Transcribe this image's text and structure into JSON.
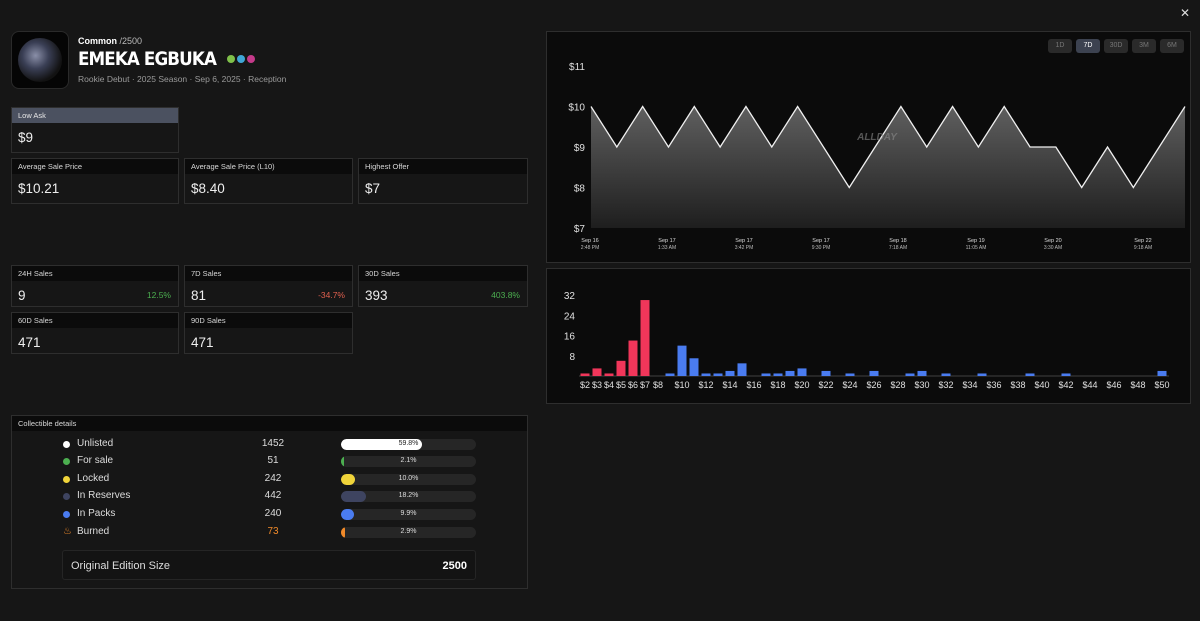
{
  "header": {
    "tier": "Common",
    "edition_suffix": "/2500",
    "player_name": "EMEKA EGBUKA",
    "meta": "Rookie Debut · 2025 Season · Sep 6, 2025 · Reception"
  },
  "stats": {
    "low_ask": {
      "label": "Low Ask",
      "value": "$9"
    },
    "avg_sale": {
      "label": "Average Sale Price",
      "value": "$10.21"
    },
    "avg_sale_l10": {
      "label": "Average Sale Price (L10)",
      "value": "$8.40"
    },
    "highest_offer": {
      "label": "Highest Offer",
      "value": "$7"
    },
    "sales_24h": {
      "label": "24H Sales",
      "value": "9",
      "change": "12.5%"
    },
    "sales_7d": {
      "label": "7D Sales",
      "value": "81",
      "change": "-34.7%"
    },
    "sales_30d": {
      "label": "30D Sales",
      "value": "393",
      "change": "403.8%"
    },
    "sales_60d": {
      "label": "60D Sales",
      "value": "471"
    },
    "sales_90d": {
      "label": "90D Sales",
      "value": "471"
    }
  },
  "details": {
    "title": "Collectible details",
    "rows": [
      {
        "label": "Unlisted",
        "count": "1452",
        "pct": "59.8%",
        "fraction": 0.598,
        "color": "#ffffff"
      },
      {
        "label": "For sale",
        "count": "51",
        "pct": "2.1%",
        "fraction": 0.021,
        "color": "#4caf50"
      },
      {
        "label": "Locked",
        "count": "242",
        "pct": "10.0%",
        "fraction": 0.1,
        "color": "#f0d43a"
      },
      {
        "label": "In Reserves",
        "count": "442",
        "pct": "18.2%",
        "fraction": 0.182,
        "color": "#3e4460"
      },
      {
        "label": "In Packs",
        "count": "240",
        "pct": "9.9%",
        "fraction": 0.099,
        "color": "#4a7cf0"
      },
      {
        "label": "Burned",
        "count": "73",
        "pct": "2.9%",
        "fraction": 0.029,
        "color": "#f08a2a",
        "icon": "flame-icon"
      }
    ],
    "edition_label": "Original Edition Size",
    "edition_value": "2500"
  },
  "range_buttons": [
    "1D",
    "7D",
    "30D",
    "3M",
    "6M"
  ],
  "active_range": "7D",
  "watermark": "ALLDAY",
  "icons": [
    "close-icon",
    "flame-icon"
  ],
  "chart_data": [
    {
      "type": "area",
      "y_ticks": [
        "$11",
        "$10",
        "$9",
        "$8",
        "$7"
      ],
      "ylim": [
        7,
        11
      ],
      "x_ticks": [
        {
          "date": "Sep 16",
          "time": "2:48 PM"
        },
        {
          "date": "Sep 17",
          "time": "1:33 AM"
        },
        {
          "date": "Sep 17",
          "time": "3:42 PM"
        },
        {
          "date": "Sep 17",
          "time": "9:30 PM"
        },
        {
          "date": "Sep 18",
          "time": "7:18 AM"
        },
        {
          "date": "Sep 19",
          "time": "11:05 AM"
        },
        {
          "date": "Sep 20",
          "time": "3:30 AM"
        },
        {
          "date": "Sep 22",
          "time": "9:18 AM"
        }
      ],
      "values": [
        10,
        9,
        10,
        9,
        10,
        9,
        10,
        9,
        10,
        9,
        8,
        9,
        10,
        9,
        10,
        9,
        10,
        9,
        9,
        8,
        9,
        8,
        9,
        10
      ]
    },
    {
      "type": "bar",
      "ylim": [
        0,
        32
      ],
      "y_ticks": [
        "32",
        "24",
        "16",
        "8"
      ],
      "x_ticks": [
        "$2",
        "$3",
        "$4",
        "$5",
        "$6",
        "$7",
        "$8",
        "$10",
        "$12",
        "$14",
        "$16",
        "$18",
        "$20",
        "$22",
        "$24",
        "$26",
        "$28",
        "$30",
        "$32",
        "$34",
        "$36",
        "$38",
        "$40",
        "$42",
        "$44",
        "$46",
        "$48",
        "$50"
      ],
      "bars": [
        {
          "x": 2,
          "value": 1,
          "color": "#f0365a"
        },
        {
          "x": 3,
          "value": 3,
          "color": "#f0365a"
        },
        {
          "x": 4,
          "value": 1,
          "color": "#f0365a"
        },
        {
          "x": 5,
          "value": 6,
          "color": "#f0365a"
        },
        {
          "x": 6,
          "value": 14,
          "color": "#f0365a"
        },
        {
          "x": 7,
          "value": 30,
          "color": "#f0365a"
        },
        {
          "x": 9,
          "value": 1,
          "color": "#4a7cf0"
        },
        {
          "x": 10,
          "value": 12,
          "color": "#4a7cf0"
        },
        {
          "x": 11,
          "value": 7,
          "color": "#4a7cf0"
        },
        {
          "x": 12,
          "value": 1,
          "color": "#4a7cf0"
        },
        {
          "x": 13,
          "value": 1,
          "color": "#4a7cf0"
        },
        {
          "x": 14,
          "value": 2,
          "color": "#4a7cf0"
        },
        {
          "x": 15,
          "value": 5,
          "color": "#4a7cf0"
        },
        {
          "x": 17,
          "value": 1,
          "color": "#4a7cf0"
        },
        {
          "x": 18,
          "value": 1,
          "color": "#4a7cf0"
        },
        {
          "x": 19,
          "value": 2,
          "color": "#4a7cf0"
        },
        {
          "x": 20,
          "value": 3,
          "color": "#4a7cf0"
        },
        {
          "x": 22,
          "value": 2,
          "color": "#4a7cf0"
        },
        {
          "x": 24,
          "value": 1,
          "color": "#4a7cf0"
        },
        {
          "x": 26,
          "value": 2,
          "color": "#4a7cf0"
        },
        {
          "x": 29,
          "value": 1,
          "color": "#4a7cf0"
        },
        {
          "x": 30,
          "value": 2,
          "color": "#4a7cf0"
        },
        {
          "x": 32,
          "value": 1,
          "color": "#4a7cf0"
        },
        {
          "x": 35,
          "value": 1,
          "color": "#4a7cf0"
        },
        {
          "x": 39,
          "value": 1,
          "color": "#4a7cf0"
        },
        {
          "x": 42,
          "value": 1,
          "color": "#4a7cf0"
        },
        {
          "x": 50,
          "value": 2,
          "color": "#4a7cf0"
        }
      ]
    }
  ]
}
